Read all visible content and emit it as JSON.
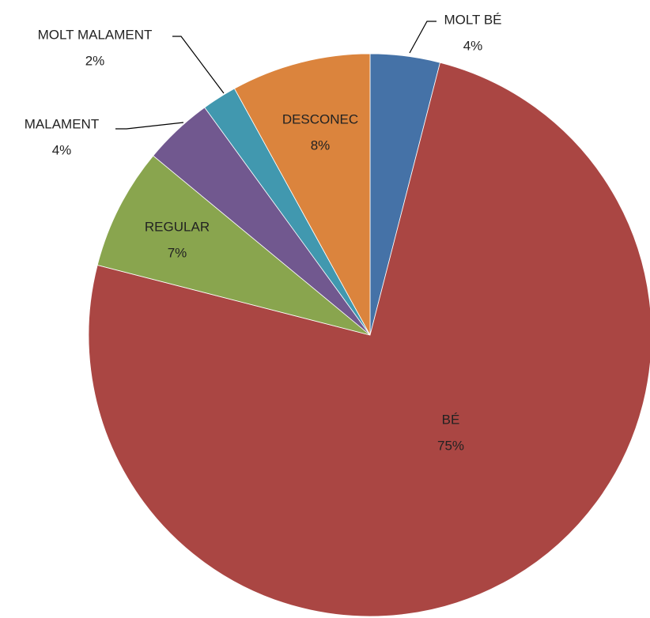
{
  "chart_data": {
    "type": "pie",
    "categories": [
      "MOLT BÉ",
      "BÉ",
      "REGULAR",
      "MALAMENT",
      "MOLT MALAMENT",
      "DESCONEC"
    ],
    "values": [
      4,
      75,
      7,
      4,
      2,
      8
    ],
    "value_labels": [
      "4%",
      "75%",
      "7%",
      "4%",
      "2%",
      "8%"
    ],
    "colors": [
      "#4572a7",
      "#aa4643",
      "#89a54e",
      "#71588f",
      "#4198af",
      "#db843d"
    ]
  }
}
